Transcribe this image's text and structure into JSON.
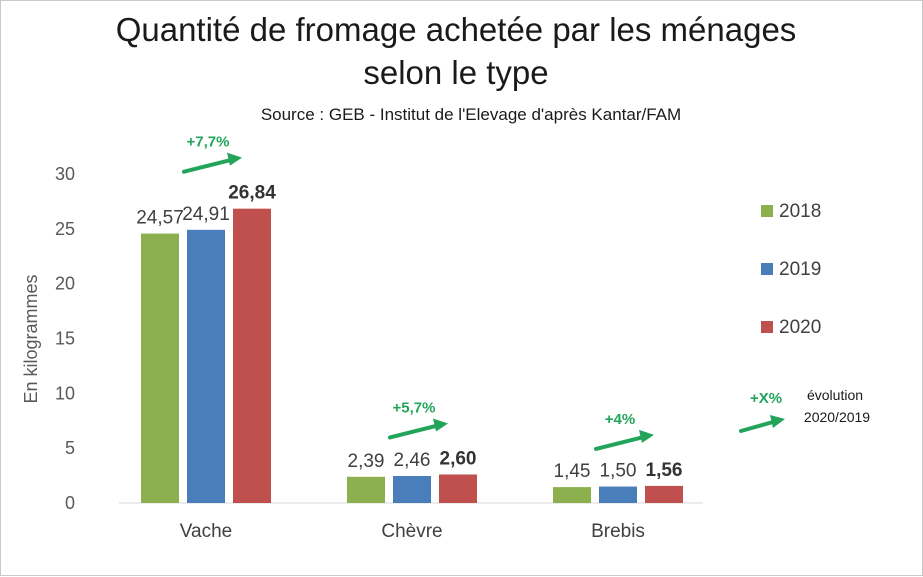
{
  "chart_data": {
    "type": "bar",
    "title_lines": [
      "Quantité de fromage achetée par les ménages",
      "selon le type"
    ],
    "subtitle": "Source : GEB - Institut de l'Elevage d'après Kantar/FAM",
    "ylabel": "En kilogrammes",
    "xlabel": "",
    "ylim": [
      0,
      30
    ],
    "yticks": [
      "0",
      "5",
      "10",
      "15",
      "20",
      "25",
      "30"
    ],
    "categories": [
      "Vache",
      "Chèvre",
      "Brebis"
    ],
    "series": [
      {
        "name": "2018",
        "color": "#8db04f",
        "values": [
          24.57,
          2.39,
          1.45
        ],
        "labels": [
          "24,57",
          "2,39",
          "1,45"
        ]
      },
      {
        "name": "2019",
        "color": "#4a7ebb",
        "values": [
          24.91,
          2.46,
          1.5
        ],
        "labels": [
          "24,91",
          "2,46",
          "1,50"
        ]
      },
      {
        "name": "2020",
        "color": "#c0504d",
        "values": [
          26.84,
          2.6,
          1.56
        ],
        "labels": [
          "26,84",
          "2,60",
          "1,56"
        ]
      }
    ],
    "evolutions": [
      "+7,7%",
      "+5,7%",
      "+4%"
    ],
    "legend_position": "right",
    "legend_note": {
      "symbol": "+X%",
      "lines": [
        "évolution",
        "2020/2019"
      ]
    },
    "grid": false,
    "arrow_color": "#22a55a"
  }
}
